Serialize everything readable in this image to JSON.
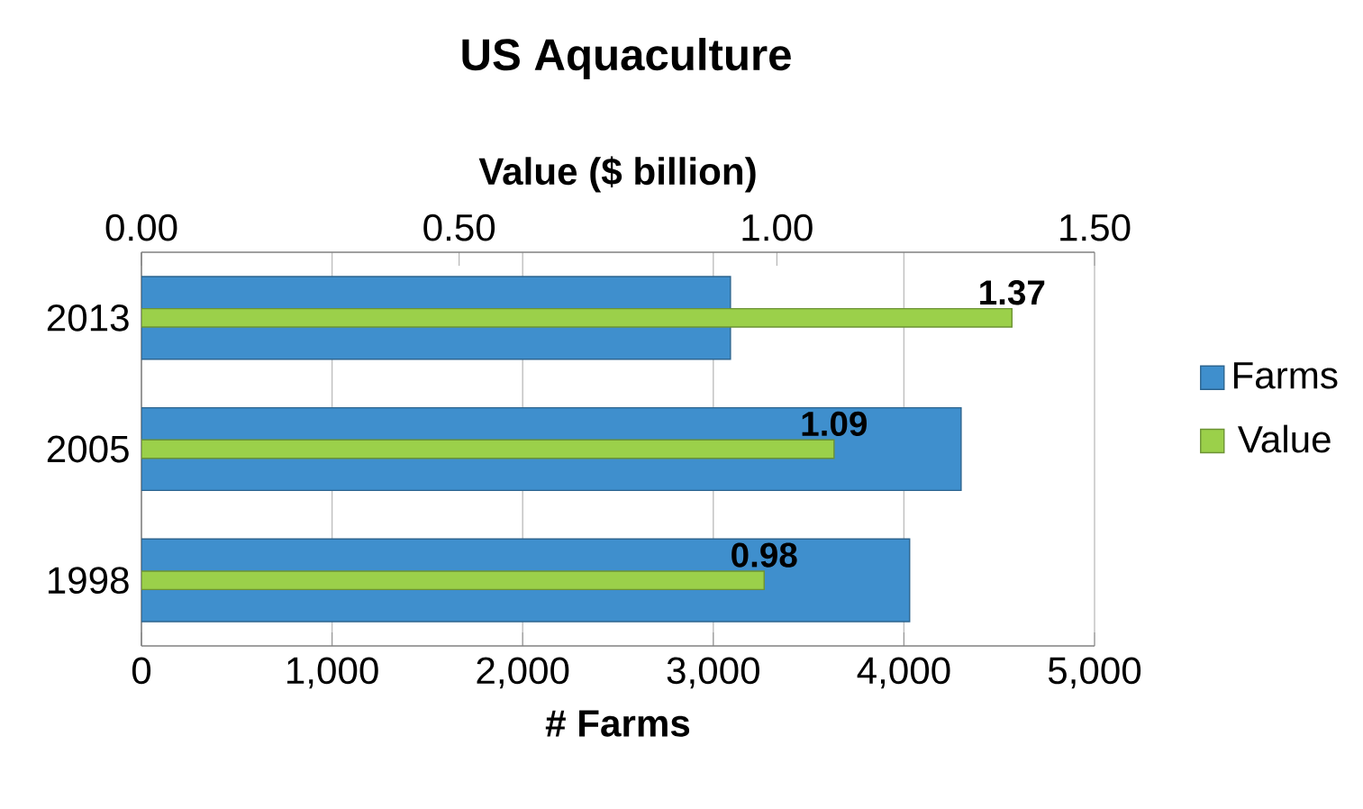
{
  "chart_data": {
    "type": "bar",
    "orientation": "horizontal",
    "title": "US Aquaculture",
    "xlabel": "# Farms",
    "x2label": "Value ($ billion)",
    "categories": [
      "2013",
      "2005",
      "1998"
    ],
    "series": [
      {
        "name": "Farms",
        "color": "#3f8fcd",
        "values": [
          3090,
          4300,
          4030
        ]
      },
      {
        "name": "Value",
        "color": "#9bd04a",
        "values": [
          1.37,
          1.09,
          0.98
        ],
        "axis": "x2",
        "value_labels": [
          "1.37",
          "1.09",
          "0.98"
        ]
      }
    ],
    "xlim": [
      0,
      5000
    ],
    "xticks": [
      0,
      {
        "value": 1000,
        "label": "1,000"
      },
      {
        "value": 2000,
        "label": "2,000"
      },
      {
        "value": 3000,
        "label": "3,000"
      },
      {
        "value": 4000,
        "label": "4,000"
      },
      {
        "value": 5000,
        "label": "5,000"
      }
    ],
    "x2lim": [
      0,
      1.5
    ],
    "x2ticks": [
      {
        "value": 0,
        "label": "0.00"
      },
      {
        "value": 0.5,
        "label": "0.50"
      },
      {
        "value": 1,
        "label": "1.00"
      },
      {
        "value": 1.5,
        "label": "1.50"
      }
    ],
    "grid": "x",
    "legend": "right"
  }
}
